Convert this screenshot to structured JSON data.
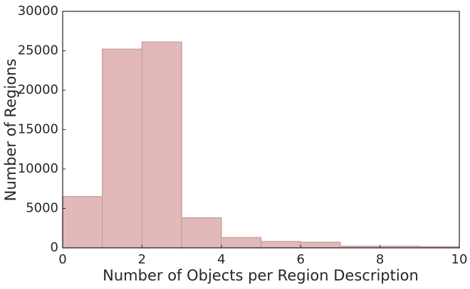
{
  "chart_data": {
    "type": "histogram",
    "xlabel": "Number of Objects per Region Description",
    "ylabel": "Number of Regions",
    "bins": [
      0,
      1,
      2,
      3,
      4,
      5,
      6,
      7,
      8,
      9,
      10
    ],
    "values": [
      6500,
      25200,
      26100,
      3800,
      1300,
      800,
      700,
      200,
      200,
      150
    ],
    "color": "#e3b8b9",
    "edgecolor": "#c8a4a4",
    "xlim": [
      0,
      10
    ],
    "xticks": [
      0,
      2,
      4,
      6,
      8,
      10
    ],
    "ylim": [
      0,
      30000
    ],
    "yticks": [
      0,
      5000,
      10000,
      15000,
      20000,
      25000,
      30000
    ],
    "grid": false
  }
}
